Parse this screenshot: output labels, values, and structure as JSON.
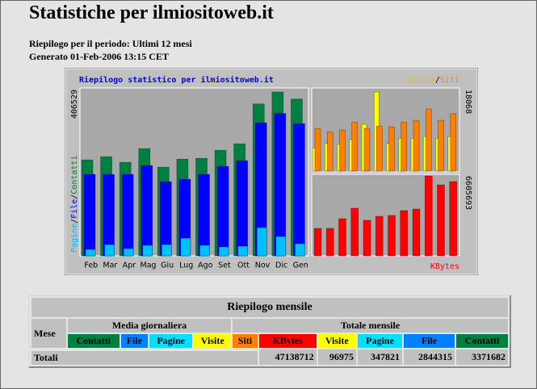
{
  "header": {
    "title": "Statistiche per ilmiositoweb.it",
    "period": "Riepilogo per il periodo: Ultimi 12 mesi",
    "generated": "Generato 01-Feb-2006 13:15 CET"
  },
  "chart_data": [
    {
      "type": "bar",
      "title": "Riepilogo statistico per ilmiositoweb.it",
      "categories": [
        "Feb",
        "Mar",
        "Apr",
        "Mag",
        "Giu",
        "Lug",
        "Ago",
        "Set",
        "Ott",
        "Nov",
        "Dic",
        "Gen"
      ],
      "series": [
        {
          "name": "Contatti",
          "color": "#008040",
          "values": [
            238000,
            246000,
            232000,
            266000,
            220000,
            240000,
            242000,
            262000,
            278000,
            377000,
            406529,
            389000
          ]
        },
        {
          "name": "File",
          "color": "#0000ff",
          "values": [
            202000,
            202000,
            202000,
            224000,
            184000,
            190000,
            202000,
            222000,
            236000,
            330000,
            353000,
            328000
          ]
        },
        {
          "name": "Pagine",
          "color": "#00c0ff",
          "values": [
            16000,
            28000,
            18000,
            26000,
            28000,
            44000,
            26000,
            22000,
            24000,
            70000,
            48000,
            30000
          ]
        }
      ],
      "ylim": [
        0,
        406529
      ],
      "yticks": [
        406529
      ]
    },
    {
      "type": "bar",
      "series": [
        {
          "name": "Visite",
          "color": "#ffff00",
          "values": [
            5300,
            6300,
            6100,
            7200,
            10700,
            18068,
            6300,
            7500,
            7500,
            7900,
            7500,
            7900
          ]
        },
        {
          "name": "Siti",
          "color": "#ff8000",
          "values": [
            9750,
            9000,
            9400,
            11200,
            9750,
            10300,
            10100,
            11200,
            11600,
            14200,
            11600,
            13100
          ]
        }
      ],
      "ylim": [
        0,
        18068
      ],
      "yticks": [
        18068
      ]
    },
    {
      "type": "bar",
      "series": [
        {
          "name": "KBytes",
          "color": "#ff0000",
          "values": [
            2270000,
            2270000,
            3070000,
            3940000,
            2940000,
            3270000,
            3340000,
            3740000,
            3870000,
            6605693,
            5870000,
            6140000
          ]
        }
      ],
      "ylim": [
        0,
        6605693
      ],
      "yticks": [
        6605693
      ]
    }
  ],
  "table": {
    "title": "Riepilogo mensile",
    "groups": [
      "Mese",
      "Media giornaliera",
      "Totale mensile"
    ],
    "columns": [
      "Contatti",
      "File",
      "Pagine",
      "Visite",
      "Siti",
      "KBytes",
      "Visite",
      "Pagine",
      "File",
      "Contatti"
    ],
    "totals_label": "Totali",
    "totals": [
      47138712,
      96975,
      347821,
      2844315,
      3371682
    ]
  }
}
